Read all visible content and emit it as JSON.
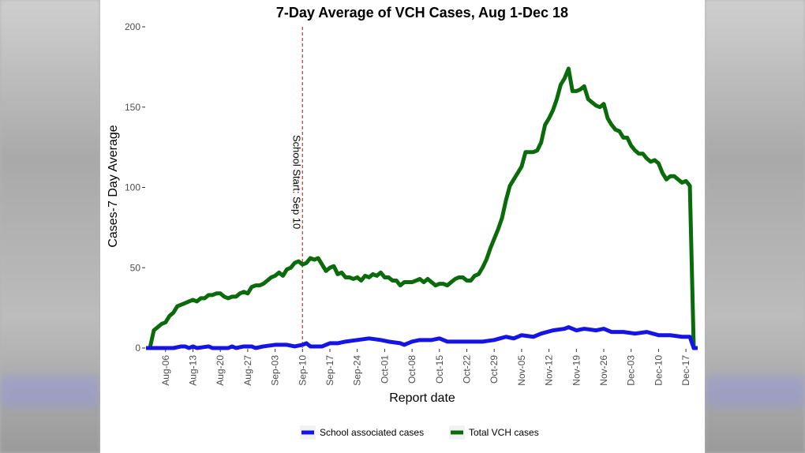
{
  "chart_data": {
    "type": "line",
    "title": "7-Day Average of VCH Cases, Aug 1-Dec 18",
    "xlabel": "Report date",
    "ylabel": "Cases-7 Day Average",
    "ylim": [
      0,
      200
    ],
    "yticks": [
      "0",
      "50",
      "100",
      "150",
      "200"
    ],
    "xlim": [
      "2020-08-01",
      "2020-12-20"
    ],
    "xticks": [
      {
        "date": "2020-08-06",
        "label": "Aug-06"
      },
      {
        "date": "2020-08-13",
        "label": "Aug-13"
      },
      {
        "date": "2020-08-20",
        "label": "Aug-20"
      },
      {
        "date": "2020-08-27",
        "label": "Aug-27"
      },
      {
        "date": "2020-09-03",
        "label": "Sep-03"
      },
      {
        "date": "2020-09-10",
        "label": "Sep-10"
      },
      {
        "date": "2020-09-17",
        "label": "Sep-17"
      },
      {
        "date": "2020-09-24",
        "label": "Sep-24"
      },
      {
        "date": "2020-10-01",
        "label": "Oct-01"
      },
      {
        "date": "2020-10-08",
        "label": "Oct-08"
      },
      {
        "date": "2020-10-15",
        "label": "Oct-15"
      },
      {
        "date": "2020-10-22",
        "label": "Oct-22"
      },
      {
        "date": "2020-10-29",
        "label": "Oct-29"
      },
      {
        "date": "2020-11-05",
        "label": "Nov-05"
      },
      {
        "date": "2020-11-12",
        "label": "Nov-12"
      },
      {
        "date": "2020-11-19",
        "label": "Nov-19"
      },
      {
        "date": "2020-11-26",
        "label": "Nov-26"
      },
      {
        "date": "2020-12-03",
        "label": "Dec-03"
      },
      {
        "date": "2020-12-10",
        "label": "Dec-10"
      },
      {
        "date": "2020-12-17",
        "label": "Dec-17"
      }
    ],
    "grid": false,
    "legend_position": "bottom",
    "annotation": {
      "date": "2020-09-10",
      "label": "School Start: Sep 10",
      "color": "#c0392b"
    },
    "series": [
      {
        "name": "Total VCH cases",
        "color": "#0a6b0a",
        "points": [
          [
            "2020-08-01",
            0
          ],
          [
            "2020-08-02",
            0
          ],
          [
            "2020-08-03",
            11
          ],
          [
            "2020-08-04",
            13
          ],
          [
            "2020-08-05",
            15
          ],
          [
            "2020-08-06",
            16
          ],
          [
            "2020-08-07",
            20
          ],
          [
            "2020-08-08",
            22
          ],
          [
            "2020-08-09",
            26
          ],
          [
            "2020-08-10",
            27
          ],
          [
            "2020-08-11",
            28
          ],
          [
            "2020-08-12",
            29
          ],
          [
            "2020-08-13",
            30
          ],
          [
            "2020-08-14",
            29
          ],
          [
            "2020-08-15",
            31
          ],
          [
            "2020-08-16",
            31
          ],
          [
            "2020-08-17",
            33
          ],
          [
            "2020-08-18",
            33
          ],
          [
            "2020-08-19",
            34
          ],
          [
            "2020-08-20",
            34
          ],
          [
            "2020-08-21",
            32
          ],
          [
            "2020-08-22",
            31
          ],
          [
            "2020-08-23",
            32
          ],
          [
            "2020-08-24",
            32
          ],
          [
            "2020-08-25",
            34
          ],
          [
            "2020-08-26",
            35
          ],
          [
            "2020-08-27",
            34
          ],
          [
            "2020-08-28",
            38
          ],
          [
            "2020-08-29",
            39
          ],
          [
            "2020-08-30",
            39
          ],
          [
            "2020-08-31",
            40
          ],
          [
            "2020-09-01",
            42
          ],
          [
            "2020-09-02",
            44
          ],
          [
            "2020-09-03",
            45
          ],
          [
            "2020-09-04",
            47
          ],
          [
            "2020-09-05",
            45
          ],
          [
            "2020-09-06",
            49
          ],
          [
            "2020-09-07",
            50
          ],
          [
            "2020-09-08",
            53
          ],
          [
            "2020-09-09",
            54
          ],
          [
            "2020-09-10",
            52
          ],
          [
            "2020-09-11",
            53
          ],
          [
            "2020-09-12",
            56
          ],
          [
            "2020-09-13",
            55
          ],
          [
            "2020-09-14",
            56
          ],
          [
            "2020-09-15",
            52
          ],
          [
            "2020-09-16",
            48
          ],
          [
            "2020-09-17",
            50
          ],
          [
            "2020-09-18",
            51
          ],
          [
            "2020-09-19",
            46
          ],
          [
            "2020-09-20",
            47
          ],
          [
            "2020-09-21",
            44
          ],
          [
            "2020-09-22",
            44
          ],
          [
            "2020-09-23",
            43
          ],
          [
            "2020-09-24",
            44
          ],
          [
            "2020-09-25",
            42
          ],
          [
            "2020-09-26",
            45
          ],
          [
            "2020-09-27",
            44
          ],
          [
            "2020-09-28",
            46
          ],
          [
            "2020-09-29",
            45
          ],
          [
            "2020-09-30",
            47
          ],
          [
            "2020-10-01",
            44
          ],
          [
            "2020-10-02",
            44
          ],
          [
            "2020-10-03",
            42
          ],
          [
            "2020-10-04",
            42
          ],
          [
            "2020-10-05",
            39
          ],
          [
            "2020-10-06",
            41
          ],
          [
            "2020-10-07",
            41
          ],
          [
            "2020-10-08",
            41
          ],
          [
            "2020-10-09",
            42
          ],
          [
            "2020-10-10",
            43
          ],
          [
            "2020-10-11",
            41
          ],
          [
            "2020-10-12",
            43
          ],
          [
            "2020-10-13",
            41
          ],
          [
            "2020-10-14",
            39
          ],
          [
            "2020-10-15",
            40
          ],
          [
            "2020-10-16",
            40
          ],
          [
            "2020-10-17",
            39
          ],
          [
            "2020-10-18",
            41
          ],
          [
            "2020-10-19",
            43
          ],
          [
            "2020-10-20",
            44
          ],
          [
            "2020-10-21",
            44
          ],
          [
            "2020-10-22",
            42
          ],
          [
            "2020-10-23",
            42
          ],
          [
            "2020-10-24",
            45
          ],
          [
            "2020-10-25",
            46
          ],
          [
            "2020-10-26",
            50
          ],
          [
            "2020-10-27",
            55
          ],
          [
            "2020-10-28",
            62
          ],
          [
            "2020-10-29",
            68
          ],
          [
            "2020-10-30",
            74
          ],
          [
            "2020-10-31",
            81
          ],
          [
            "2020-11-01",
            92
          ],
          [
            "2020-11-02",
            101
          ],
          [
            "2020-11-03",
            105
          ],
          [
            "2020-11-04",
            109
          ],
          [
            "2020-11-05",
            113
          ],
          [
            "2020-11-06",
            122
          ],
          [
            "2020-11-07",
            122
          ],
          [
            "2020-11-08",
            122
          ],
          [
            "2020-11-09",
            123
          ],
          [
            "2020-11-10",
            128
          ],
          [
            "2020-11-11",
            139
          ],
          [
            "2020-11-12",
            143
          ],
          [
            "2020-11-13",
            148
          ],
          [
            "2020-11-14",
            155
          ],
          [
            "2020-11-15",
            164
          ],
          [
            "2020-11-16",
            168
          ],
          [
            "2020-11-17",
            174
          ],
          [
            "2020-11-18",
            160
          ],
          [
            "2020-11-19",
            160
          ],
          [
            "2020-11-20",
            161
          ],
          [
            "2020-11-21",
            163
          ],
          [
            "2020-11-22",
            155
          ],
          [
            "2020-11-23",
            153
          ],
          [
            "2020-11-24",
            151
          ],
          [
            "2020-11-25",
            150
          ],
          [
            "2020-11-26",
            152
          ],
          [
            "2020-11-27",
            143
          ],
          [
            "2020-11-28",
            139
          ],
          [
            "2020-11-29",
            136
          ],
          [
            "2020-11-30",
            135
          ],
          [
            "2020-12-01",
            131
          ],
          [
            "2020-12-02",
            131
          ],
          [
            "2020-12-03",
            126
          ],
          [
            "2020-12-04",
            123
          ],
          [
            "2020-12-05",
            121
          ],
          [
            "2020-12-06",
            121
          ],
          [
            "2020-12-07",
            118
          ],
          [
            "2020-12-08",
            116
          ],
          [
            "2020-12-09",
            117
          ],
          [
            "2020-12-10",
            115
          ],
          [
            "2020-12-11",
            109
          ],
          [
            "2020-12-12",
            105
          ],
          [
            "2020-12-13",
            107
          ],
          [
            "2020-12-14",
            107
          ],
          [
            "2020-12-15",
            105
          ],
          [
            "2020-12-16",
            103
          ],
          [
            "2020-12-17",
            104
          ],
          [
            "2020-12-18",
            101
          ],
          [
            "2020-12-19",
            0
          ],
          [
            "2020-12-20",
            0
          ]
        ]
      },
      {
        "name": "School associated cases",
        "color": "#1414e6",
        "points": [
          [
            "2020-08-01",
            0
          ],
          [
            "2020-08-05",
            0
          ],
          [
            "2020-08-08",
            0
          ],
          [
            "2020-08-10",
            1
          ],
          [
            "2020-08-11",
            1
          ],
          [
            "2020-08-12",
            0
          ],
          [
            "2020-08-13",
            1
          ],
          [
            "2020-08-14",
            0
          ],
          [
            "2020-08-17",
            1
          ],
          [
            "2020-08-18",
            0
          ],
          [
            "2020-08-22",
            0
          ],
          [
            "2020-08-23",
            1
          ],
          [
            "2020-08-24",
            0
          ],
          [
            "2020-08-26",
            1
          ],
          [
            "2020-08-27",
            1
          ],
          [
            "2020-08-28",
            1
          ],
          [
            "2020-08-29",
            0
          ],
          [
            "2020-08-31",
            1
          ],
          [
            "2020-09-03",
            2
          ],
          [
            "2020-09-06",
            2
          ],
          [
            "2020-09-08",
            1
          ],
          [
            "2020-09-10",
            2
          ],
          [
            "2020-09-11",
            3
          ],
          [
            "2020-09-12",
            1
          ],
          [
            "2020-09-15",
            1
          ],
          [
            "2020-09-17",
            3
          ],
          [
            "2020-09-19",
            3
          ],
          [
            "2020-09-21",
            4
          ],
          [
            "2020-09-24",
            5
          ],
          [
            "2020-09-27",
            6
          ],
          [
            "2020-09-30",
            5
          ],
          [
            "2020-10-02",
            4
          ],
          [
            "2020-10-05",
            3
          ],
          [
            "2020-10-06",
            2
          ],
          [
            "2020-10-08",
            4
          ],
          [
            "2020-10-10",
            5
          ],
          [
            "2020-10-13",
            5
          ],
          [
            "2020-10-15",
            6
          ],
          [
            "2020-10-17",
            4
          ],
          [
            "2020-10-20",
            4
          ],
          [
            "2020-10-23",
            4
          ],
          [
            "2020-10-26",
            4
          ],
          [
            "2020-10-29",
            5
          ],
          [
            "2020-11-01",
            7
          ],
          [
            "2020-11-03",
            6
          ],
          [
            "2020-11-05",
            8
          ],
          [
            "2020-11-08",
            7
          ],
          [
            "2020-11-10",
            9
          ],
          [
            "2020-11-13",
            11
          ],
          [
            "2020-11-16",
            12
          ],
          [
            "2020-11-17",
            13
          ],
          [
            "2020-11-19",
            11
          ],
          [
            "2020-11-21",
            12
          ],
          [
            "2020-11-24",
            11
          ],
          [
            "2020-11-26",
            12
          ],
          [
            "2020-11-28",
            10
          ],
          [
            "2020-12-01",
            10
          ],
          [
            "2020-12-04",
            9
          ],
          [
            "2020-12-07",
            10
          ],
          [
            "2020-12-10",
            8
          ],
          [
            "2020-12-13",
            8
          ],
          [
            "2020-12-16",
            7
          ],
          [
            "2020-12-18",
            7
          ],
          [
            "2020-12-19",
            0
          ],
          [
            "2020-12-20",
            0
          ]
        ]
      }
    ]
  },
  "legend": {
    "items": [
      {
        "label": "School associated cases",
        "color": "#1414e6"
      },
      {
        "label": "Total VCH cases",
        "color": "#0a6b0a"
      }
    ]
  }
}
